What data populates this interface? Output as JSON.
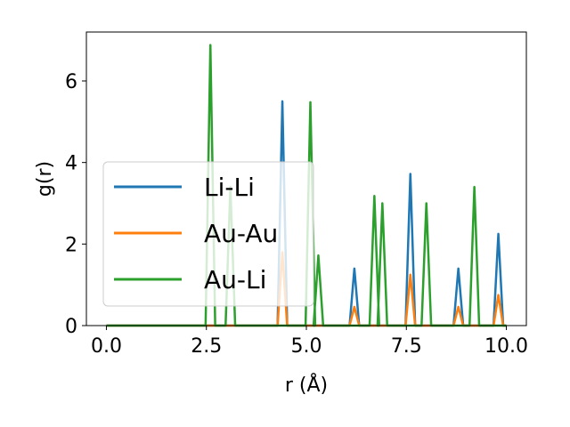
{
  "chart_data": {
    "type": "line",
    "xlabel": "r (Å)",
    "ylabel": "g(r)",
    "xlim": [
      -0.5,
      10.5
    ],
    "ylim": [
      0,
      7.2
    ],
    "xticks": [
      0.0,
      2.5,
      5.0,
      7.5,
      10.0
    ],
    "xtick_labels": [
      "0.0",
      "2.5",
      "5.0",
      "7.5",
      "10.0"
    ],
    "yticks": [
      0,
      2,
      4,
      6
    ],
    "ytick_labels": [
      "0",
      "2",
      "4",
      "6"
    ],
    "grid": false,
    "legend_position": "center-left",
    "peak_halfwidth": 0.12,
    "series": [
      {
        "name": "Li-Li",
        "color": "#1f77b4",
        "peaks": [
          [
            4.4,
            5.5
          ],
          [
            6.2,
            1.4
          ],
          [
            7.6,
            3.72
          ],
          [
            8.8,
            1.4
          ],
          [
            9.8,
            2.25
          ]
        ]
      },
      {
        "name": "Au-Au",
        "color": "#ff7f0e",
        "peaks": [
          [
            4.4,
            1.8
          ],
          [
            6.2,
            0.46
          ],
          [
            7.6,
            1.25
          ],
          [
            8.8,
            0.46
          ],
          [
            9.8,
            0.75
          ]
        ]
      },
      {
        "name": "Au-Li",
        "color": "#2ca02c",
        "peaks": [
          [
            2.6,
            6.88
          ],
          [
            3.1,
            3.4
          ],
          [
            5.1,
            5.48
          ],
          [
            5.3,
            1.72
          ],
          [
            6.7,
            3.18
          ],
          [
            6.9,
            3.0
          ],
          [
            8.0,
            3.0
          ],
          [
            9.2,
            3.4
          ]
        ]
      }
    ],
    "x_end": 10.0
  }
}
